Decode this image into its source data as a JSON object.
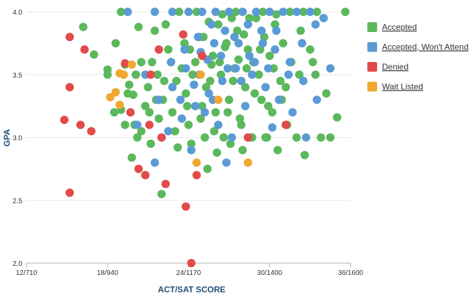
{
  "chart_data": {
    "type": "scatter",
    "xlabel": "ACT/SAT SCORE",
    "ylabel": "GPA",
    "x_ticks": [
      {
        "value": 12,
        "label": "12/710"
      },
      {
        "value": 18,
        "label": "18/940"
      },
      {
        "value": 24,
        "label": "24/1170"
      },
      {
        "value": 30,
        "label": "30/1400"
      },
      {
        "value": 36,
        "label": "36/1600"
      }
    ],
    "y_ticks": [
      {
        "value": 2.0,
        "label": "2.0"
      },
      {
        "value": 2.5,
        "label": "2.5"
      },
      {
        "value": 3.0,
        "label": "3.0"
      },
      {
        "value": 3.5,
        "label": "3.5"
      },
      {
        "value": 4.0,
        "label": "4.0"
      }
    ],
    "xlim": [
      12,
      36
    ],
    "ylim": [
      2.0,
      4.0
    ],
    "grid": "horizontal",
    "legend_position": "right",
    "series": [
      {
        "name": "Accepted",
        "color": "#5cb85c",
        "points": [
          [
            19,
            4.0
          ],
          [
            20.3,
            3.88
          ],
          [
            16.2,
            3.88
          ],
          [
            17,
            3.66
          ],
          [
            18,
            3.54
          ],
          [
            18,
            3.5
          ],
          [
            18.6,
            3.75
          ],
          [
            19.3,
            3.58
          ],
          [
            19.6,
            3.42
          ],
          [
            19.9,
            3.34
          ],
          [
            18.5,
            3.2
          ],
          [
            19,
            3.22
          ],
          [
            19.5,
            3.35
          ],
          [
            20,
            3.1
          ],
          [
            20.2,
            3.0
          ],
          [
            20.5,
            3.05
          ],
          [
            20.8,
            3.25
          ],
          [
            21,
            3.4
          ],
          [
            21.3,
            3.6
          ],
          [
            21.6,
            3.3
          ],
          [
            21.8,
            3.15
          ],
          [
            22,
            3.0
          ],
          [
            22.2,
            3.45
          ],
          [
            22.5,
            3.7
          ],
          [
            22.8,
            3.2
          ],
          [
            23,
            3.05
          ],
          [
            23.2,
            2.92
          ],
          [
            23.5,
            3.55
          ],
          [
            23.8,
            3.35
          ],
          [
            24,
            3.1
          ],
          [
            24.2,
            2.95
          ],
          [
            24.5,
            3.6
          ],
          [
            24.8,
            3.8
          ],
          [
            25,
            3.25
          ],
          [
            25.2,
            3.0
          ],
          [
            25.4,
            2.75
          ],
          [
            25.6,
            3.45
          ],
          [
            25.8,
            3.65
          ],
          [
            26,
            3.2
          ],
          [
            26.2,
            3.9
          ],
          [
            26.4,
            3.5
          ],
          [
            26.6,
            3.0
          ],
          [
            26.8,
            3.75
          ],
          [
            27,
            3.3
          ],
          [
            27.2,
            3.95
          ],
          [
            27.4,
            3.55
          ],
          [
            27.6,
            3.85
          ],
          [
            27.8,
            3.15
          ],
          [
            28,
            2.9
          ],
          [
            28.2,
            3.4
          ],
          [
            28.4,
            3.7
          ],
          [
            28.6,
            3.0
          ],
          [
            28.8,
            3.6
          ],
          [
            29,
            3.95
          ],
          [
            29.2,
            3.5
          ],
          [
            29.4,
            3.3
          ],
          [
            29.6,
            3.8
          ],
          [
            29.8,
            3.0
          ],
          [
            30,
            3.65
          ],
          [
            30.2,
            3.2
          ],
          [
            30.4,
            3.9
          ],
          [
            30.6,
            2.9
          ],
          [
            30.8,
            3.45
          ],
          [
            31,
            3.75
          ],
          [
            31.3,
            3.1
          ],
          [
            31.6,
            3.6
          ],
          [
            32,
            3.0
          ],
          [
            32.3,
            3.85
          ],
          [
            32.6,
            2.86
          ],
          [
            33,
            3.7
          ],
          [
            33.4,
            3.5
          ],
          [
            33.8,
            3.0
          ],
          [
            34.2,
            3.35
          ],
          [
            34.5,
            3.0
          ],
          [
            35,
            3.16
          ],
          [
            35.6,
            4.0
          ],
          [
            33.5,
            4.0
          ],
          [
            32.5,
            4.0
          ],
          [
            21.5,
            3.85
          ],
          [
            22.3,
            3.9
          ],
          [
            23.3,
            4.0
          ],
          [
            24.6,
            4.0
          ],
          [
            25.5,
            3.92
          ],
          [
            26.5,
            3.98
          ],
          [
            27.5,
            4.0
          ],
          [
            28.5,
            3.95
          ],
          [
            29.5,
            4.0
          ],
          [
            30.5,
            3.98
          ],
          [
            31.5,
            4.0
          ],
          [
            22,
            2.55
          ],
          [
            21.2,
            2.95
          ],
          [
            20.8,
            2.7
          ],
          [
            19.8,
            2.84
          ],
          [
            20.5,
            3.6
          ],
          [
            21.7,
            3.5
          ],
          [
            22.7,
            3.6
          ],
          [
            23.7,
            3.75
          ],
          [
            24.3,
            3.5
          ],
          [
            25.3,
            3.4
          ],
          [
            26.3,
            3.6
          ],
          [
            27.3,
            3.45
          ],
          [
            28.3,
            3.55
          ],
          [
            29.3,
            3.7
          ],
          [
            30.3,
            3.55
          ],
          [
            31.2,
            3.4
          ],
          [
            32.2,
            3.5
          ],
          [
            33.2,
            3.6
          ],
          [
            23.9,
            3.25
          ],
          [
            24.9,
            3.15
          ],
          [
            25.9,
            3.05
          ],
          [
            26.9,
            3.2
          ],
          [
            27.9,
            3.1
          ],
          [
            28.9,
            3.35
          ],
          [
            29.9,
            3.25
          ],
          [
            30.9,
            3.3
          ],
          [
            26.1,
            2.88
          ],
          [
            27.1,
            2.95
          ],
          [
            28.7,
            3.0
          ],
          [
            29.7,
            3.0
          ],
          [
            24.1,
            3.7
          ],
          [
            25.1,
            3.8
          ],
          [
            23.1,
            3.45
          ],
          [
            22.1,
            3.3
          ],
          [
            21.1,
            3.2
          ],
          [
            20.1,
            3.5
          ],
          [
            19.3,
            3.1
          ],
          [
            27.7,
            3.62
          ],
          [
            28.1,
            3.82
          ],
          [
            26.7,
            3.72
          ],
          [
            25.7,
            3.58
          ]
        ]
      },
      {
        "name": "Accepted, Won't Attend",
        "color": "#5b9bd5",
        "points": [
          [
            19.5,
            4.0
          ],
          [
            21.5,
            4.0
          ],
          [
            22.8,
            4.0
          ],
          [
            24,
            4.0
          ],
          [
            25,
            4.0
          ],
          [
            26,
            4.0
          ],
          [
            27,
            4.0
          ],
          [
            28,
            4.0
          ],
          [
            29,
            4.0
          ],
          [
            30,
            4.0
          ],
          [
            31,
            4.0
          ],
          [
            32,
            4.0
          ],
          [
            33,
            4.0
          ],
          [
            34,
            3.95
          ],
          [
            34.5,
            3.55
          ],
          [
            33.5,
            3.3
          ],
          [
            32.5,
            3.45
          ],
          [
            31.5,
            3.6
          ],
          [
            30.5,
            3.85
          ],
          [
            29.5,
            3.75
          ],
          [
            28.5,
            3.65
          ],
          [
            27.5,
            3.55
          ],
          [
            26.5,
            3.45
          ],
          [
            25.5,
            3.35
          ],
          [
            24.5,
            3.25
          ],
          [
            23.5,
            3.15
          ],
          [
            22.5,
            3.05
          ],
          [
            21.5,
            2.8
          ],
          [
            22.7,
            3.6
          ],
          [
            23.7,
            3.7
          ],
          [
            24.7,
            3.8
          ],
          [
            25.7,
            3.9
          ],
          [
            26.7,
            3.85
          ],
          [
            27.7,
            3.75
          ],
          [
            28.7,
            3.5
          ],
          [
            29.7,
            3.4
          ],
          [
            30.7,
            3.3
          ],
          [
            31.7,
            3.2
          ],
          [
            32.7,
            3.0
          ],
          [
            30.2,
            3.08
          ],
          [
            28.2,
            3.25
          ],
          [
            27.2,
            3.0
          ],
          [
            26.2,
            3.1
          ],
          [
            25.2,
            3.2
          ],
          [
            24.2,
            2.9
          ],
          [
            26.8,
            2.8
          ],
          [
            25.8,
            3.3
          ],
          [
            24.8,
            3.5
          ],
          [
            23.8,
            3.55
          ],
          [
            22.8,
            3.4
          ],
          [
            21.8,
            3.3
          ],
          [
            20.8,
            3.5
          ],
          [
            20.2,
            3.1
          ],
          [
            26.4,
            3.65
          ],
          [
            27.4,
            3.8
          ],
          [
            28.4,
            3.9
          ],
          [
            29.4,
            3.85
          ],
          [
            30.4,
            3.7
          ],
          [
            31.4,
            3.5
          ],
          [
            32.4,
            3.75
          ],
          [
            33.4,
            3.9
          ],
          [
            25.4,
            3.62
          ],
          [
            24.4,
            3.42
          ],
          [
            23.4,
            3.3
          ],
          [
            27.9,
            3.45
          ],
          [
            28.9,
            3.6
          ],
          [
            29.9,
            3.55
          ],
          [
            26.9,
            3.55
          ],
          [
            25.9,
            3.75
          ],
          [
            24.9,
            3.68
          ]
        ]
      },
      {
        "name": "Denied",
        "color": "#e34a4a",
        "points": [
          [
            15.2,
            3.8
          ],
          [
            15.2,
            3.4
          ],
          [
            16.3,
            3.7
          ],
          [
            14.8,
            3.14
          ],
          [
            16,
            3.1
          ],
          [
            16.8,
            3.05
          ],
          [
            15.2,
            2.56
          ],
          [
            19.3,
            3.59
          ],
          [
            19.7,
            3.2
          ],
          [
            20.3,
            2.75
          ],
          [
            20.8,
            2.7
          ],
          [
            21.2,
            3.5
          ],
          [
            21.8,
            3.7
          ],
          [
            22.3,
            2.63
          ],
          [
            22,
            3.0
          ],
          [
            23.6,
            3.82
          ],
          [
            23.8,
            2.45
          ],
          [
            24.2,
            2.0
          ],
          [
            24.6,
            2.7
          ],
          [
            25,
            3.65
          ],
          [
            28.4,
            3.0
          ],
          [
            31.2,
            3.1
          ],
          [
            21.1,
            3.1
          ]
        ]
      },
      {
        "name": "Wait Listed",
        "color": "#f0a830",
        "points": [
          [
            18.2,
            3.32
          ],
          [
            18.6,
            3.36
          ],
          [
            18.9,
            3.51
          ],
          [
            19.2,
            3.5
          ],
          [
            18.9,
            3.26
          ],
          [
            24.6,
            2.8
          ],
          [
            28.4,
            2.8
          ],
          [
            24.9,
            3.5
          ],
          [
            26.2,
            3.3
          ],
          [
            19.8,
            3.58
          ]
        ]
      }
    ]
  }
}
